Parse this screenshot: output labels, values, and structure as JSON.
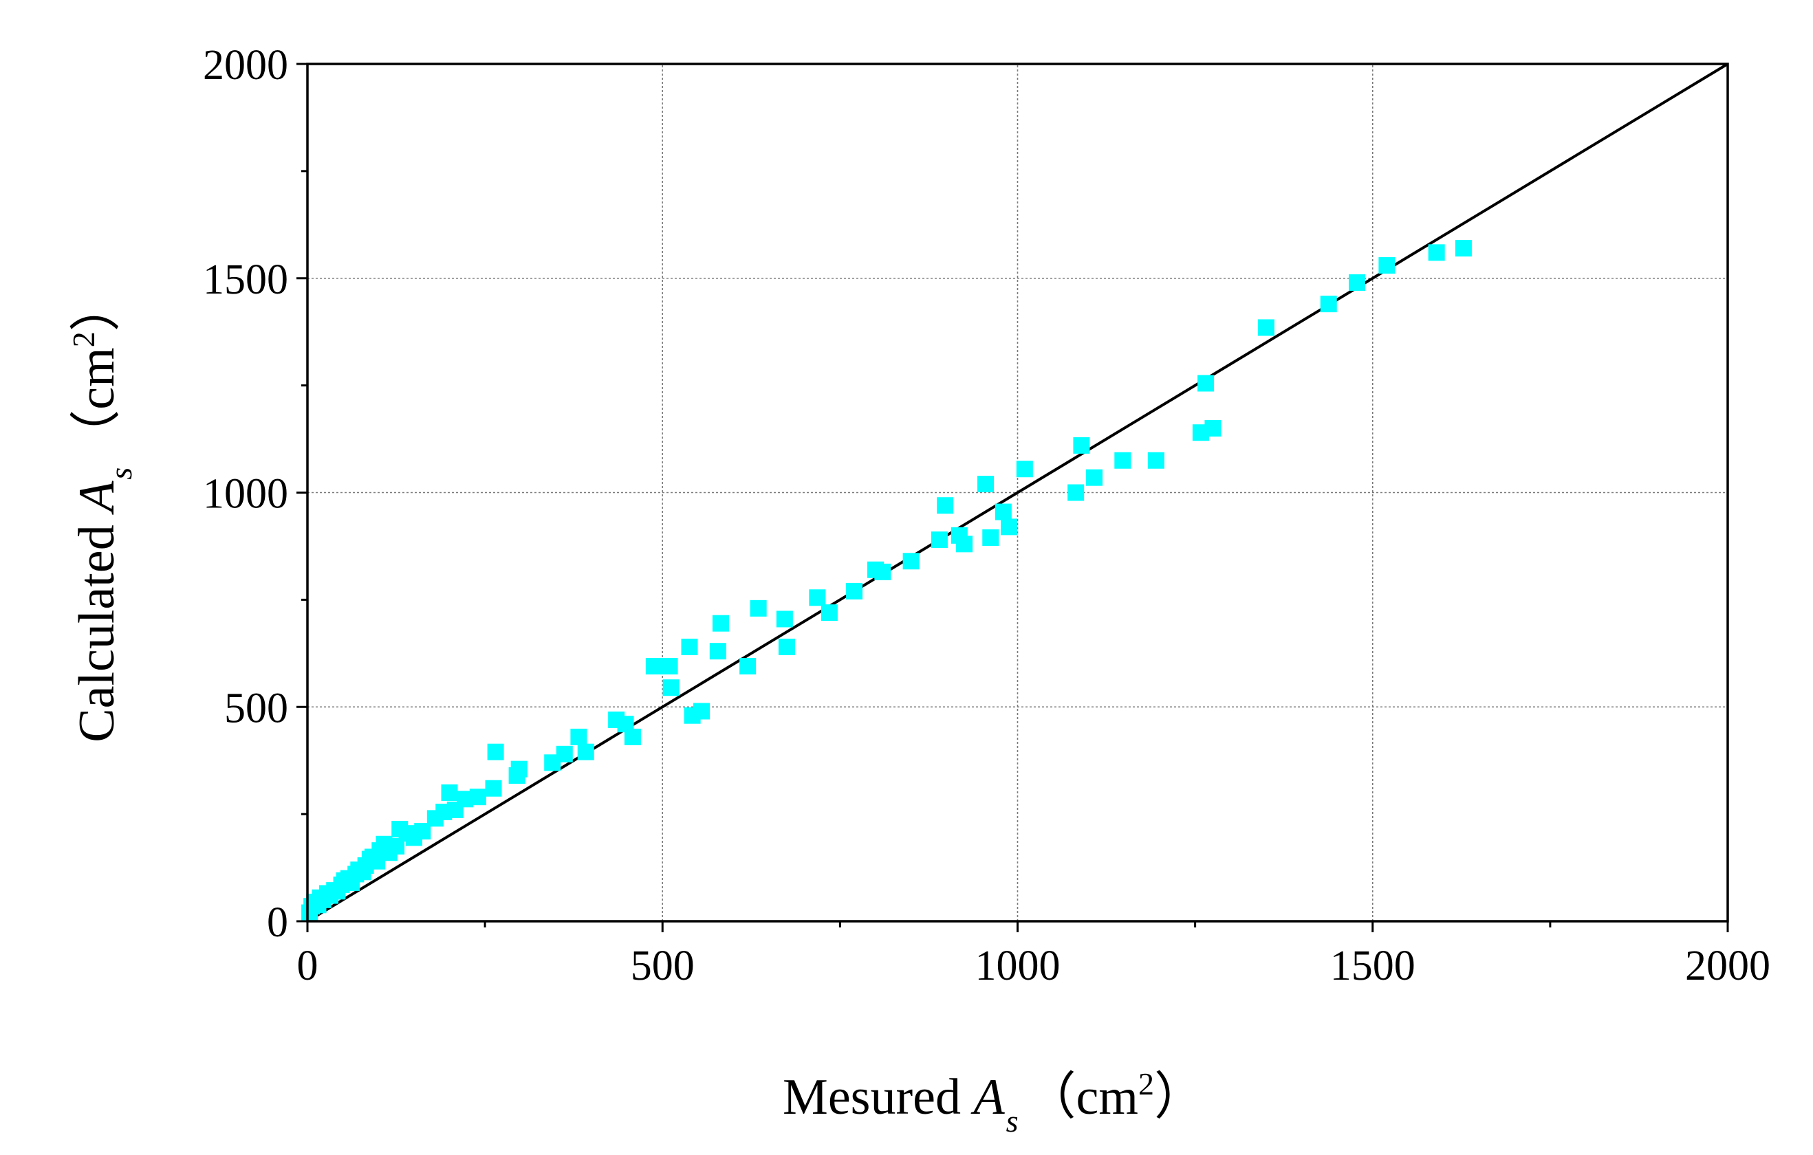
{
  "chart_data": {
    "type": "scatter",
    "xlabel": {
      "prefix": "Mesured ",
      "symbol": "A",
      "subscript": "s",
      "unit_open": "（cm",
      "unit_power": "2",
      "unit_close": "）"
    },
    "ylabel": {
      "prefix": "Calculated ",
      "symbol": "A",
      "subscript": "s",
      "unit_open": "（cm",
      "unit_power": "2",
      "unit_close": "）"
    },
    "xlim": [
      0,
      2000
    ],
    "ylim": [
      0,
      2000
    ],
    "xticks": [
      "0",
      "500",
      "1000",
      "1500",
      "2000"
    ],
    "yticks": [
      "0",
      "500",
      "1000",
      "1500",
      "2000"
    ],
    "x_minor_step": 250,
    "y_minor_step": 250,
    "grid": true,
    "reference_line": {
      "from": [
        0,
        0
      ],
      "to": [
        2000,
        2000
      ],
      "color": "#000000"
    },
    "marker_color": "#00FFFF",
    "series": [
      {
        "points": [
          [
            3,
            20
          ],
          [
            6,
            35
          ],
          [
            10,
            45
          ],
          [
            15,
            38
          ],
          [
            18,
            55
          ],
          [
            22,
            50
          ],
          [
            28,
            65
          ],
          [
            32,
            60
          ],
          [
            38,
            72
          ],
          [
            42,
            70
          ],
          [
            48,
            85
          ],
          [
            52,
            95
          ],
          [
            58,
            100
          ],
          [
            62,
            90
          ],
          [
            68,
            110
          ],
          [
            72,
            120
          ],
          [
            78,
            115
          ],
          [
            82,
            130
          ],
          [
            88,
            145
          ],
          [
            92,
            150
          ],
          [
            98,
            140
          ],
          [
            102,
            165
          ],
          [
            108,
            180
          ],
          [
            115,
            160
          ],
          [
            125,
            175
          ],
          [
            130,
            215
          ],
          [
            140,
            205
          ],
          [
            150,
            195
          ],
          [
            162,
            210
          ],
          [
            180,
            240
          ],
          [
            192,
            255
          ],
          [
            200,
            300
          ],
          [
            208,
            260
          ],
          [
            222,
            285
          ],
          [
            240,
            290
          ],
          [
            262,
            310
          ],
          [
            265,
            395
          ],
          [
            295,
            340
          ],
          [
            298,
            355
          ],
          [
            345,
            370
          ],
          [
            362,
            390
          ],
          [
            382,
            430
          ],
          [
            392,
            395
          ],
          [
            435,
            470
          ],
          [
            448,
            460
          ],
          [
            458,
            430
          ],
          [
            488,
            595
          ],
          [
            510,
            595
          ],
          [
            512,
            545
          ],
          [
            538,
            640
          ],
          [
            542,
            480
          ],
          [
            555,
            490
          ],
          [
            578,
            630
          ],
          [
            582,
            695
          ],
          [
            620,
            595
          ],
          [
            635,
            730
          ],
          [
            672,
            705
          ],
          [
            675,
            640
          ],
          [
            718,
            755
          ],
          [
            735,
            720
          ],
          [
            770,
            770
          ],
          [
            800,
            820
          ],
          [
            810,
            815
          ],
          [
            850,
            840
          ],
          [
            890,
            890
          ],
          [
            898,
            970
          ],
          [
            918,
            900
          ],
          [
            925,
            880
          ],
          [
            955,
            1020
          ],
          [
            962,
            895
          ],
          [
            980,
            955
          ],
          [
            988,
            920
          ],
          [
            1010,
            1055
          ],
          [
            1082,
            1000
          ],
          [
            1090,
            1110
          ],
          [
            1108,
            1035
          ],
          [
            1148,
            1075
          ],
          [
            1195,
            1075
          ],
          [
            1258,
            1140
          ],
          [
            1265,
            1255
          ],
          [
            1275,
            1150
          ],
          [
            1350,
            1385
          ],
          [
            1438,
            1440
          ],
          [
            1478,
            1490
          ],
          [
            1520,
            1530
          ],
          [
            1590,
            1560
          ],
          [
            1628,
            1570
          ]
        ]
      }
    ]
  }
}
